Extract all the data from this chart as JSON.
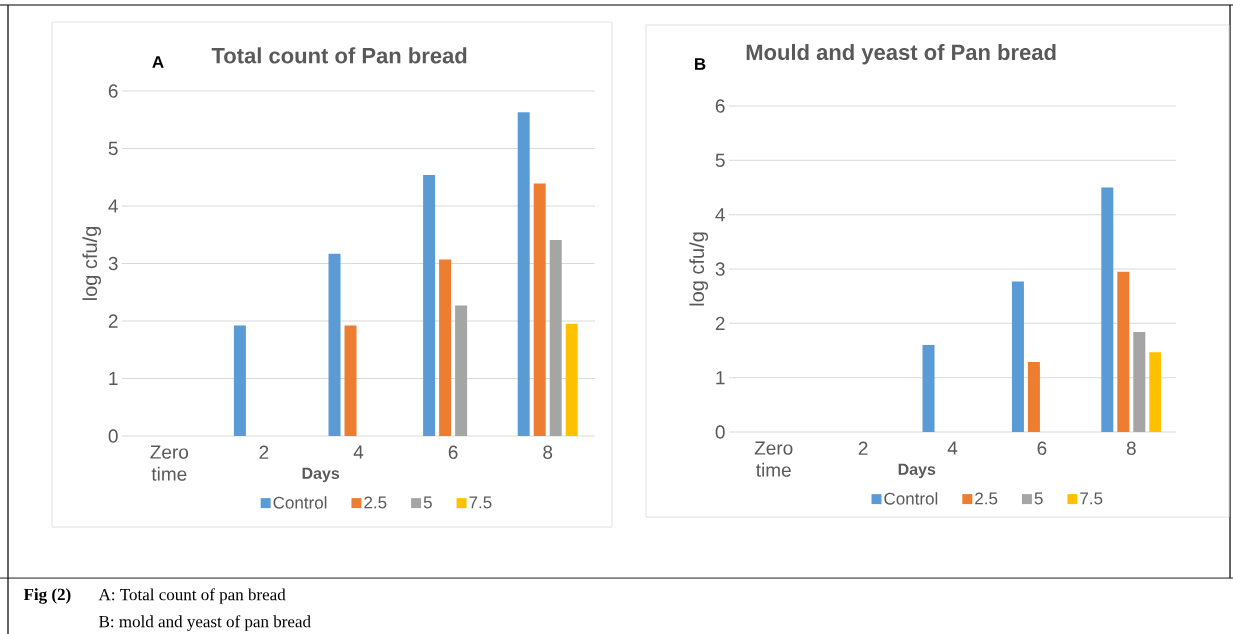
{
  "chart_data": [
    {
      "type": "bar",
      "title": "Total count of Pan bread",
      "xlabel": "Days",
      "ylabel": "log cfu/g",
      "categories": [
        "Zero time",
        "2",
        "4",
        "6",
        "8"
      ],
      "series": [
        {
          "name": "Control",
          "color": "#5b9bd5",
          "values": [
            0,
            1.92,
            3.17,
            4.54,
            5.63
          ]
        },
        {
          "name": "2.5",
          "color": "#ed7d31",
          "values": [
            0,
            0,
            1.92,
            3.07,
            4.39
          ]
        },
        {
          "name": "5",
          "color": "#a5a5a5",
          "values": [
            0,
            0,
            0,
            2.27,
            3.41
          ]
        },
        {
          "name": "7.5",
          "color": "#ffc000",
          "values": [
            0,
            0,
            0,
            0,
            1.95
          ]
        }
      ],
      "ylim": [
        0,
        6
      ],
      "yticks": [
        0,
        1,
        2,
        3,
        4,
        5,
        6
      ],
      "grid": "y",
      "legend": "bottom",
      "annotations": [
        "A",
        "Fig (2)",
        "A: Total count of pan bread",
        "B: mold and yeast of pan bread"
      ]
    },
    {
      "type": "bar",
      "title": "Mould and yeast of Pan bread",
      "xlabel": "Days",
      "ylabel": "log cfu/g",
      "categories": [
        "Zero time",
        "2",
        "4",
        "6",
        "8"
      ],
      "series": [
        {
          "name": "Control",
          "color": "#5b9bd5",
          "values": [
            0,
            0,
            1.6,
            2.77,
            4.5
          ]
        },
        {
          "name": "2.5",
          "color": "#ed7d31",
          "values": [
            0,
            0,
            0,
            1.29,
            2.95
          ]
        },
        {
          "name": "5",
          "color": "#a5a5a5",
          "values": [
            0,
            0,
            0,
            0,
            1.84
          ]
        },
        {
          "name": "7.5",
          "color": "#ffc000",
          "values": [
            0,
            0,
            0,
            0,
            1.47
          ]
        }
      ],
      "ylim": [
        0,
        6
      ],
      "yticks": [
        0,
        1,
        2,
        3,
        4,
        5,
        6
      ],
      "grid": "y",
      "legend": "bottom",
      "annotations": [
        "B"
      ]
    }
  ]
}
